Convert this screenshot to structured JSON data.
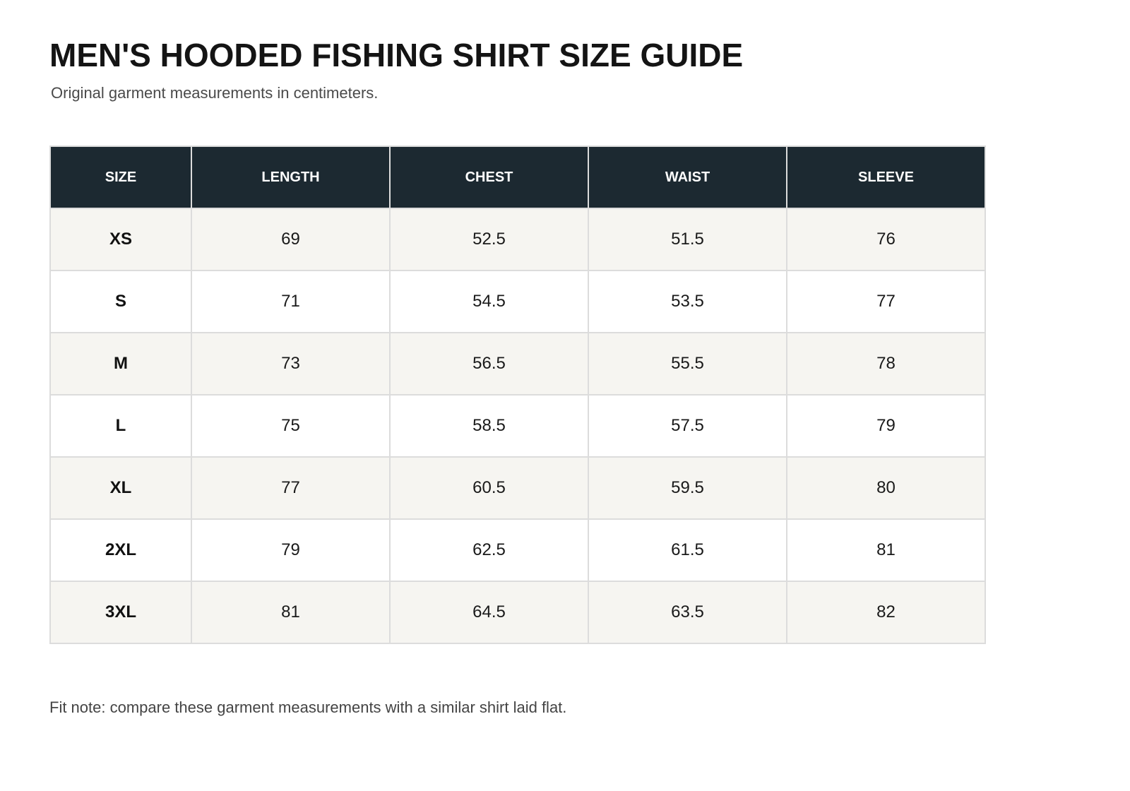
{
  "header": {
    "title": "MEN'S HOODED FISHING SHIRT SIZE GUIDE",
    "subtitle": "Original garment measurements in centimeters."
  },
  "table": {
    "columns": [
      "SIZE",
      "LENGTH",
      "CHEST",
      "WAIST",
      "SLEEVE"
    ],
    "rows": [
      [
        "XS",
        "69",
        "52.5",
        "51.5",
        "76"
      ],
      [
        "S",
        "71",
        "54.5",
        "53.5",
        "77"
      ],
      [
        "M",
        "73",
        "56.5",
        "55.5",
        "78"
      ],
      [
        "L",
        "75",
        "58.5",
        "57.5",
        "79"
      ],
      [
        "XL",
        "77",
        "60.5",
        "59.5",
        "80"
      ],
      [
        "2XL",
        "79",
        "62.5",
        "61.5",
        "81"
      ],
      [
        "3XL",
        "81",
        "64.5",
        "63.5",
        "82"
      ]
    ]
  },
  "footer": {
    "fit_note": "Fit note: compare these garment measurements with a similar shirt laid flat."
  },
  "colors": {
    "header_background": "#1c2931",
    "header_text": "#ffffff",
    "row_alt_background": "#f6f5f1",
    "border": "#dcdcdc"
  }
}
